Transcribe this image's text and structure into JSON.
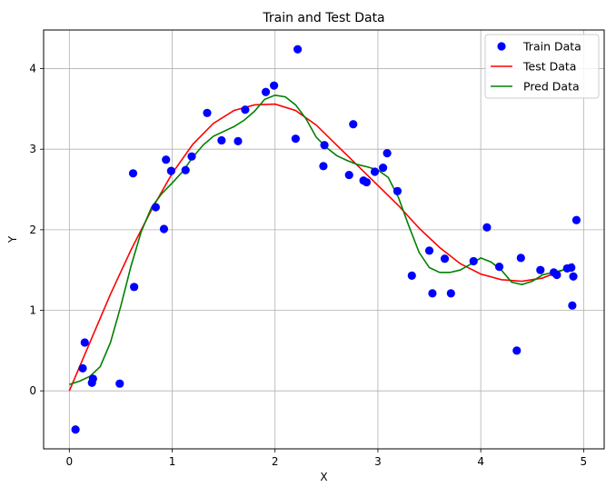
{
  "chart_data": {
    "type": "scatter",
    "title": "Train and Test Data",
    "xlabel": "X",
    "ylabel": "Y",
    "xlim": [
      -0.25,
      5.2
    ],
    "ylim": [
      -0.72,
      4.48
    ],
    "xticks": [
      0,
      1,
      2,
      3,
      4,
      5
    ],
    "yticks": [
      0,
      1,
      2,
      3,
      4
    ],
    "grid": true,
    "legend_position": "top-right",
    "series": [
      {
        "name": "Train Data",
        "kind": "scatter",
        "color": "#0000ff",
        "x": [
          0.06,
          0.13,
          0.15,
          0.22,
          0.23,
          0.49,
          0.62,
          0.63,
          0.84,
          0.92,
          0.94,
          0.99,
          1.13,
          1.19,
          1.34,
          1.48,
          1.64,
          1.71,
          1.91,
          1.99,
          2.2,
          2.22,
          2.47,
          2.48,
          2.72,
          2.76,
          2.86,
          2.89,
          2.97,
          3.05,
          3.09,
          3.19,
          3.33,
          3.5,
          3.53,
          3.65,
          3.71,
          3.93,
          4.06,
          4.18,
          4.35,
          4.39,
          4.58,
          4.71,
          4.74,
          4.84,
          4.88,
          4.89,
          4.9,
          4.93
        ],
        "y": [
          -0.48,
          0.28,
          0.6,
          0.1,
          0.15,
          0.09,
          2.7,
          1.29,
          2.28,
          2.01,
          2.87,
          2.73,
          2.74,
          2.91,
          3.45,
          3.11,
          3.1,
          3.49,
          3.71,
          3.79,
          3.13,
          4.24,
          2.79,
          3.05,
          2.68,
          3.31,
          2.61,
          2.59,
          2.72,
          2.77,
          2.95,
          2.48,
          1.43,
          1.74,
          1.21,
          1.64,
          1.21,
          1.61,
          2.03,
          1.54,
          0.5,
          1.65,
          1.5,
          1.47,
          1.44,
          1.52,
          1.53,
          1.06,
          1.42,
          2.12
        ]
      },
      {
        "name": "Test Data",
        "kind": "line",
        "color": "#ff0000",
        "x": [
          0,
          0.2,
          0.4,
          0.6,
          0.8,
          1.0,
          1.2,
          1.4,
          1.6,
          1.8,
          2.0,
          2.2,
          2.4,
          2.6,
          2.8,
          3.0,
          3.2,
          3.4,
          3.6,
          3.8,
          4.0,
          4.2,
          4.4,
          4.6,
          4.8,
          4.9
        ],
        "y": [
          0.0,
          0.6,
          1.2,
          1.75,
          2.25,
          2.7,
          3.06,
          3.32,
          3.48,
          3.55,
          3.56,
          3.48,
          3.3,
          3.05,
          2.8,
          2.55,
          2.3,
          2.02,
          1.78,
          1.58,
          1.45,
          1.38,
          1.36,
          1.4,
          1.5,
          1.58
        ]
      },
      {
        "name": "Pred Data",
        "kind": "line",
        "color": "#008000",
        "x": [
          0,
          0.1,
          0.2,
          0.3,
          0.4,
          0.5,
          0.6,
          0.7,
          0.8,
          0.9,
          1.0,
          1.1,
          1.2,
          1.3,
          1.4,
          1.5,
          1.6,
          1.7,
          1.8,
          1.9,
          2.0,
          2.1,
          2.2,
          2.3,
          2.4,
          2.5,
          2.6,
          2.7,
          2.8,
          2.9,
          3.0,
          3.1,
          3.2,
          3.3,
          3.4,
          3.5,
          3.6,
          3.7,
          3.8,
          3.9,
          4.0,
          4.1,
          4.2,
          4.3,
          4.4,
          4.5,
          4.6,
          4.7,
          4.8,
          4.9
        ],
        "y": [
          0.08,
          0.12,
          0.18,
          0.3,
          0.6,
          1.05,
          1.55,
          1.98,
          2.28,
          2.45,
          2.58,
          2.72,
          2.9,
          3.05,
          3.16,
          3.22,
          3.28,
          3.36,
          3.47,
          3.62,
          3.67,
          3.65,
          3.55,
          3.38,
          3.15,
          3.02,
          2.92,
          2.86,
          2.81,
          2.78,
          2.74,
          2.65,
          2.4,
          2.05,
          1.72,
          1.53,
          1.47,
          1.47,
          1.5,
          1.57,
          1.65,
          1.6,
          1.5,
          1.35,
          1.32,
          1.36,
          1.44,
          1.47,
          1.5,
          1.53
        ]
      }
    ]
  }
}
